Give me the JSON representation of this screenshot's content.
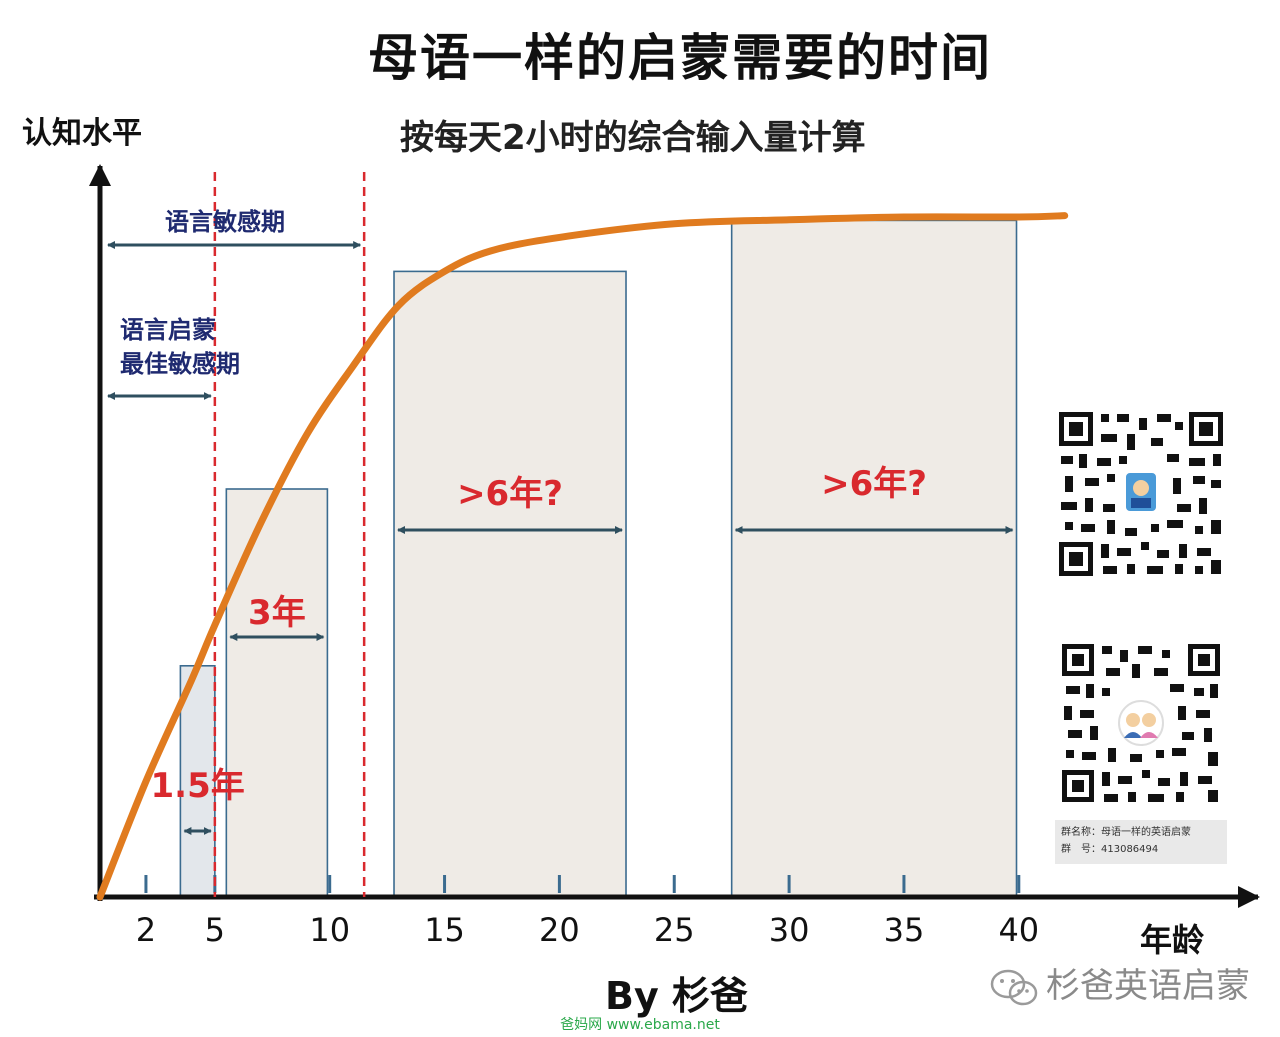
{
  "title": "母语一样的启蒙需要的时间",
  "subtitle": "按每天2小时的综合输入量计算",
  "y_axis_label": "认知水平",
  "x_axis_label": "年龄",
  "byline": "By 杉爸",
  "watermark": "杉爸英语启蒙",
  "footer": "爸妈网 www.ebama.net",
  "qr_caption": {
    "line1": "群名称：母语一样的英语启蒙",
    "line2": "群　号：413086494"
  },
  "colors": {
    "curve": "#e07b1f",
    "bar_fill": "#efebe6",
    "bar_fill_early": "#e3e7eb",
    "bar_border": "#3b6b8f",
    "red_dash": "#d9292e",
    "dark_arrow": "#2f4f5f",
    "navy_text": "#1f2a70",
    "red_text": "#d9292e"
  },
  "chart_data": {
    "type": "area",
    "xlabel": "年龄",
    "ylabel": "认知水平",
    "x_ticks": [
      2,
      5,
      10,
      15,
      20,
      25,
      30,
      35,
      40
    ],
    "curve": {
      "name": "",
      "x": [
        0,
        2,
        4,
        5,
        7,
        9,
        11,
        13,
        15,
        17,
        20,
        25,
        30,
        35,
        40,
        42
      ],
      "y": [
        0,
        17,
        32,
        40,
        55,
        68,
        78,
        87,
        92,
        95,
        97,
        99,
        99.6,
        100,
        100,
        100.2
      ]
    },
    "duration_bars": [
      {
        "label": "1.5年",
        "x_start": 3.5,
        "x_end": 5,
        "height": 34
      },
      {
        "label": "3年",
        "x_start": 5.5,
        "x_end": 9.9,
        "height": 60
      },
      {
        "label": ">6年?",
        "x_start": 12.8,
        "x_end": 22.9,
        "height": 92
      },
      {
        "label": ">6年?",
        "x_start": 27.5,
        "x_end": 39.9,
        "height": 99.5
      }
    ],
    "periods": [
      {
        "label_lines": [
          "语言敏感期"
        ],
        "x_start": 0,
        "x_end": 11.5
      },
      {
        "label_lines": [
          "语言启蒙",
          "最佳敏感期"
        ],
        "x_start": 0,
        "x_end": 5
      }
    ],
    "dashed_lines_x": [
      5,
      11.5
    ]
  }
}
